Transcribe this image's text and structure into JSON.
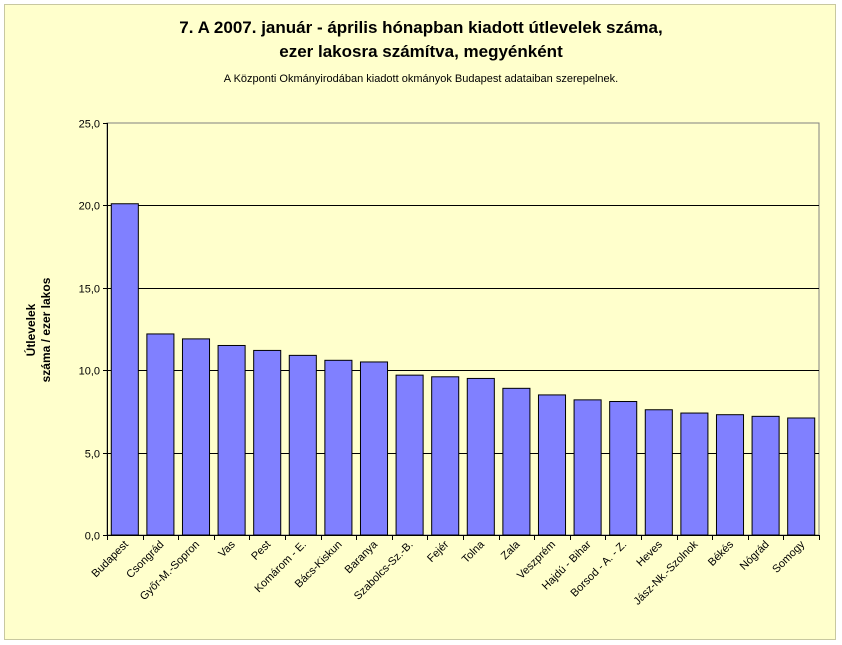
{
  "chart_data": {
    "type": "bar",
    "title_line1": "7. A 2007. január - április hónapban kiadott útlevelek száma,",
    "title_line2": "ezer lakosra számítva, megyénként",
    "subtitle": "A Központi Okmányirodában kiadott okmányok Budapest adataiban szerepelnek.",
    "ylabel_line1": "Útlevelek",
    "ylabel_line2": "száma / ezer lakos",
    "xlabel": "",
    "ylim": [
      0,
      25
    ],
    "ytick_labels": [
      "0,0",
      "5,0",
      "10,0",
      "15,0",
      "20,0",
      "25,0"
    ],
    "grid": true,
    "categories": [
      "Budapest",
      "Csongrád",
      "Győr-M.-Sopron",
      "Vas",
      "Pest",
      "Komárom - E.",
      "Bács-Kiskun",
      "Baranya",
      "Szabolcs-Sz.-B.",
      "Fejér",
      "Tolna",
      "Zala",
      "Veszprém",
      "Hajdú - Bihar",
      "Borsod - A. - Z.",
      "Heves",
      "Jász-Nk.-Szolnok",
      "Békés",
      "Nógrád",
      "Somogy"
    ],
    "values": [
      20.1,
      12.2,
      11.9,
      11.5,
      11.2,
      10.9,
      10.6,
      10.5,
      9.7,
      9.6,
      9.5,
      8.9,
      8.5,
      8.2,
      8.1,
      7.6,
      7.4,
      7.3,
      7.2,
      7.1
    ],
    "bar_color": "#8080ff",
    "plot_background": "#ffffcc"
  }
}
